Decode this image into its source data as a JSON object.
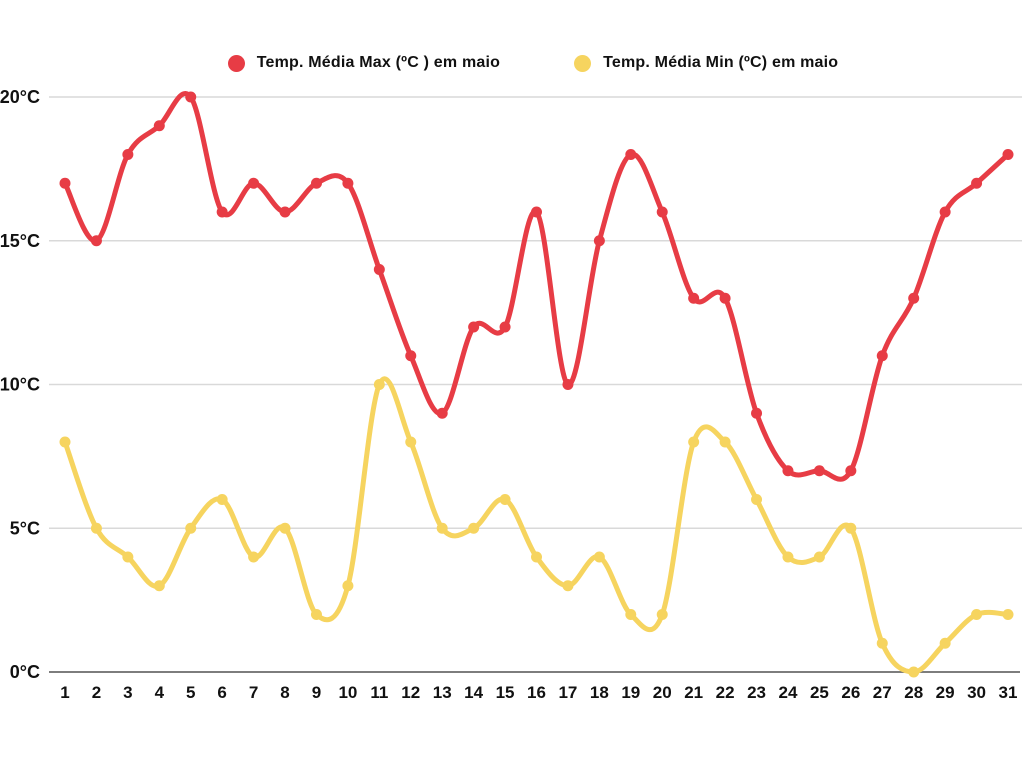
{
  "chart_data": {
    "type": "line",
    "title": "",
    "xlabel": "",
    "ylabel": "",
    "x": [
      1,
      2,
      3,
      4,
      5,
      6,
      7,
      8,
      9,
      10,
      11,
      12,
      13,
      14,
      15,
      16,
      17,
      18,
      19,
      20,
      21,
      22,
      23,
      24,
      25,
      26,
      27,
      28,
      29,
      30,
      31
    ],
    "x_tick_labels": [
      "1",
      "2",
      "3",
      "4",
      "5",
      "6",
      "7",
      "8",
      "9",
      "10",
      "11",
      "12",
      "13",
      "14",
      "15",
      "16",
      "17",
      "18",
      "19",
      "20",
      "21",
      "22",
      "23",
      "24",
      "25",
      "26",
      "27",
      "28",
      "29",
      "30",
      "31"
    ],
    "ylim": [
      0,
      20
    ],
    "yticks": [
      0,
      5,
      10,
      15,
      20
    ],
    "ytick_labels": [
      "0°C",
      "5°C",
      "10°C",
      "15°C",
      "20°C"
    ],
    "grid": "horizontal",
    "legend_position": "top-center",
    "curve": "smooth",
    "series": [
      {
        "name": "Temp. Média Max (ºC ) em maio",
        "color": "#e73c45",
        "values": [
          17,
          15,
          18,
          19,
          20,
          16,
          17,
          16,
          17,
          17,
          14,
          11,
          9,
          12,
          12,
          16,
          10,
          15,
          18,
          16,
          13,
          13,
          9,
          7,
          7,
          7,
          11,
          13,
          16,
          17,
          18
        ]
      },
      {
        "name": "Temp. Média Min (ºC) em maio",
        "color": "#f6d45f",
        "values": [
          8,
          5,
          4,
          3,
          5,
          6,
          4,
          5,
          2,
          3,
          10,
          8,
          5,
          5,
          6,
          4,
          3,
          4,
          2,
          2,
          8,
          8,
          6,
          4,
          4,
          5,
          1,
          0,
          1,
          2,
          2
        ]
      }
    ]
  },
  "colors": {
    "background": "#ffffff",
    "gridline": "#d9d9d9",
    "axis_line": "#7d7d7d",
    "tick_label": "#111111",
    "legend_text": "#111111"
  }
}
